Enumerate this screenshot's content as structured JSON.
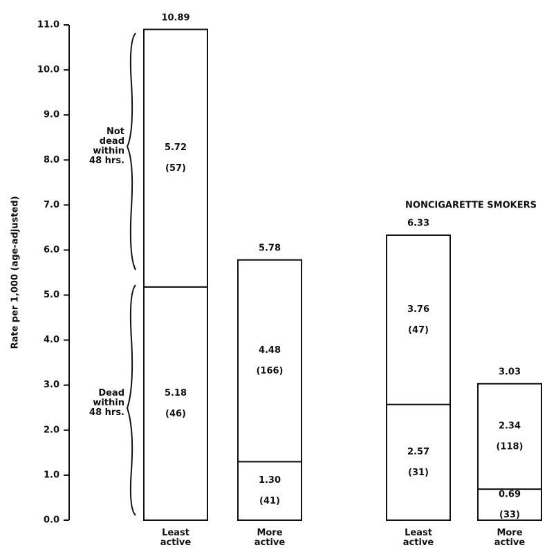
{
  "chart_data": {
    "type": "bar",
    "stacked": true,
    "y_label": "Rate per 1,000 (age-adjusted)",
    "ylim": [
      0,
      11
    ],
    "yticks": [
      {
        "value": 0,
        "label": "0.0"
      },
      {
        "value": 1,
        "label": "1.0"
      },
      {
        "value": 2,
        "label": "2.0"
      },
      {
        "value": 3,
        "label": "3.0"
      },
      {
        "value": 4,
        "label": "4.0"
      },
      {
        "value": 5,
        "label": "5.0"
      },
      {
        "value": 6,
        "label": "6.0"
      },
      {
        "value": 7,
        "label": "7.0"
      },
      {
        "value": 8,
        "label": "8.0"
      },
      {
        "value": 9,
        "label": "9.0"
      },
      {
        "value": 10,
        "label": "10.0"
      },
      {
        "value": 11,
        "label": "11.0"
      }
    ],
    "group_titles": [
      null,
      "NONCIGARETTE SMOKERS"
    ],
    "categories": [
      "Least active",
      "More active",
      "Least active",
      "More active"
    ],
    "color": "#ffffff",
    "series": [
      {
        "name": "Dead within 48 hrs.",
        "values": [
          5.18,
          1.3,
          2.57,
          0.69
        ],
        "value_labels": [
          "5.18",
          "1.30",
          "2.57",
          "0.69"
        ],
        "count_labels": [
          "(46)",
          "(41)",
          "(31)",
          "(33)"
        ]
      },
      {
        "name": "Not dead within 48 hrs.",
        "values": [
          5.72,
          4.48,
          3.76,
          2.34
        ],
        "value_labels": [
          "5.72",
          "4.48",
          "3.76",
          "2.34"
        ],
        "count_labels": [
          "(57)",
          "(166)",
          "(47)",
          "(118)"
        ]
      }
    ],
    "totals": [
      10.89,
      5.78,
      6.33,
      3.03
    ]
  }
}
